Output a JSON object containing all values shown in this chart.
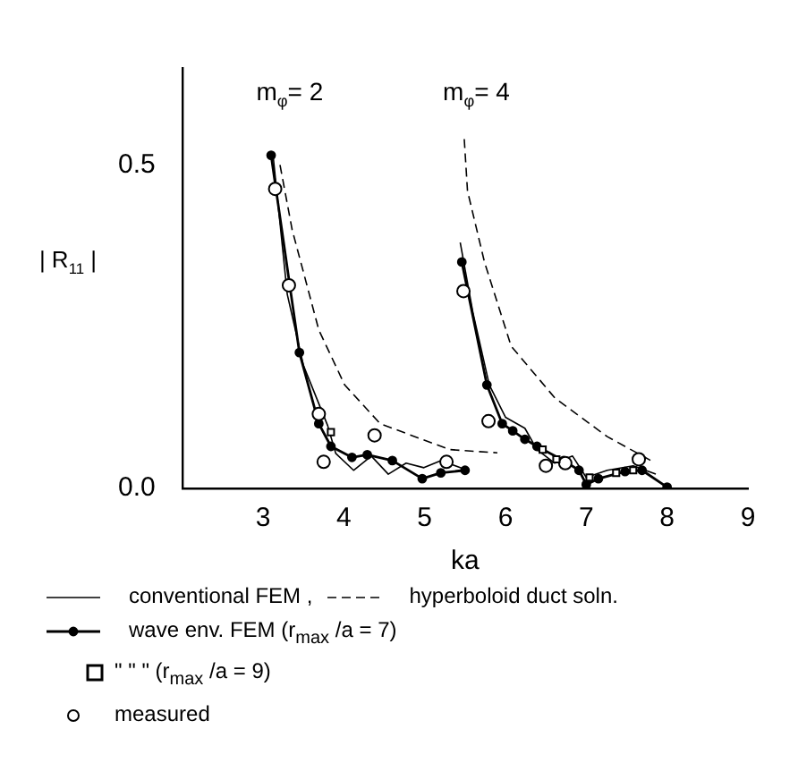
{
  "chart_data": {
    "type": "line",
    "xlabel": "ka",
    "ylabel": "| R$_{11}$ |",
    "xlim": [
      2,
      9
    ],
    "ylim": [
      0,
      0.65
    ],
    "xticks": [
      3,
      4,
      5,
      6,
      7,
      8,
      9
    ],
    "yticks": [
      {
        "value": 0,
        "label": "0.0"
      },
      0.5
    ],
    "grid": false,
    "legend": "bottom",
    "annotations": [
      "m$_{φ}$= 2",
      "m$_{φ}$= 4"
    ],
    "series": [
      {
        "name": "conventional FEM ,",
        "type": "line",
        "color": "#000000",
        "marker": "none",
        "line_style": "solid",
        "x": [
          3.12,
          3.3,
          3.5,
          3.8,
          3.9,
          4.12,
          4.34,
          4.55,
          4.77,
          4.99,
          5.2,
          5.53
        ],
        "values": [
          0.52,
          0.3,
          0.19,
          0.097,
          0.054,
          0.028,
          0.05,
          0.022,
          0.039,
          0.032,
          0.043,
          0.028
        ]
      },
      {
        "type": "line",
        "color": "#000000",
        "marker": "none",
        "line_style": "solid",
        "x": [
          5.44,
          5.6,
          5.8,
          6.0,
          6.24,
          6.39,
          6.61,
          6.83,
          7.0,
          7.26,
          7.58,
          7.86
        ],
        "values": [
          0.38,
          0.27,
          0.16,
          0.11,
          0.093,
          0.06,
          0.039,
          0.05,
          0.017,
          0.028,
          0.035,
          0.022
        ]
      },
      {
        "name": "hyperboloid duct soln.",
        "type": "line",
        "color": "#000000",
        "marker": "none",
        "line_style": "dashed",
        "x": [
          3.21,
          3.36,
          3.69,
          4.01,
          4.45,
          5.31,
          5.9
        ],
        "values": [
          0.5,
          0.4,
          0.245,
          0.16,
          0.1,
          0.06,
          0.055
        ]
      },
      {
        "type": "line",
        "color": "#000000",
        "marker": "none",
        "line_style": "dashed",
        "x": [
          5.49,
          5.53,
          5.74,
          6.07,
          6.61,
          7.26,
          7.8
        ],
        "values": [
          0.54,
          0.46,
          0.35,
          0.22,
          0.14,
          0.08,
          0.043
        ]
      },
      {
        "name": "wave env. FEM (r$_{max}$ /a = 7)",
        "type": "line",
        "color": "#000000",
        "marker": "circle",
        "line_style": "solid",
        "x": [
          3.1,
          3.45,
          3.69,
          3.84,
          4.1,
          4.29,
          4.6,
          4.97,
          5.2,
          5.5
        ],
        "values": [
          0.515,
          0.21,
          0.1,
          0.065,
          0.048,
          0.052,
          0.043,
          0.015,
          0.024,
          0.028
        ]
      },
      {
        "type": "line",
        "color": "#000000",
        "marker": "circle",
        "line_style": "solid",
        "x": [
          5.46,
          5.77,
          5.96,
          6.09,
          6.24,
          6.39,
          6.72,
          6.91,
          7.0,
          7.15,
          7.48,
          7.69,
          8.0
        ],
        "values": [
          0.35,
          0.16,
          0.1,
          0.089,
          0.076,
          0.065,
          0.043,
          0.028,
          0.006,
          0.015,
          0.026,
          0.028,
          0.002
        ]
      },
      {
        "name": "\"    \"    \" (r$_{max}$ /a = 9)",
        "type": "scatter",
        "color": "#000000",
        "marker": "square",
        "x": [
          3.84,
          6.46,
          6.63,
          7.04,
          7.37,
          7.58
        ],
        "values": [
          0.087,
          0.06,
          0.045,
          0.017,
          0.024,
          0.028
        ]
      },
      {
        "name": "measured",
        "type": "scatter",
        "color": "#000000",
        "marker": "circle",
        "x": [
          3.15,
          3.32,
          3.69,
          3.75,
          4.38,
          5.27,
          5.48,
          5.79,
          6.5,
          6.74,
          7.65
        ],
        "values": [
          0.463,
          0.314,
          0.115,
          0.041,
          0.082,
          0.041,
          0.305,
          0.104,
          0.035,
          0.039,
          0.045
        ]
      }
    ]
  }
}
